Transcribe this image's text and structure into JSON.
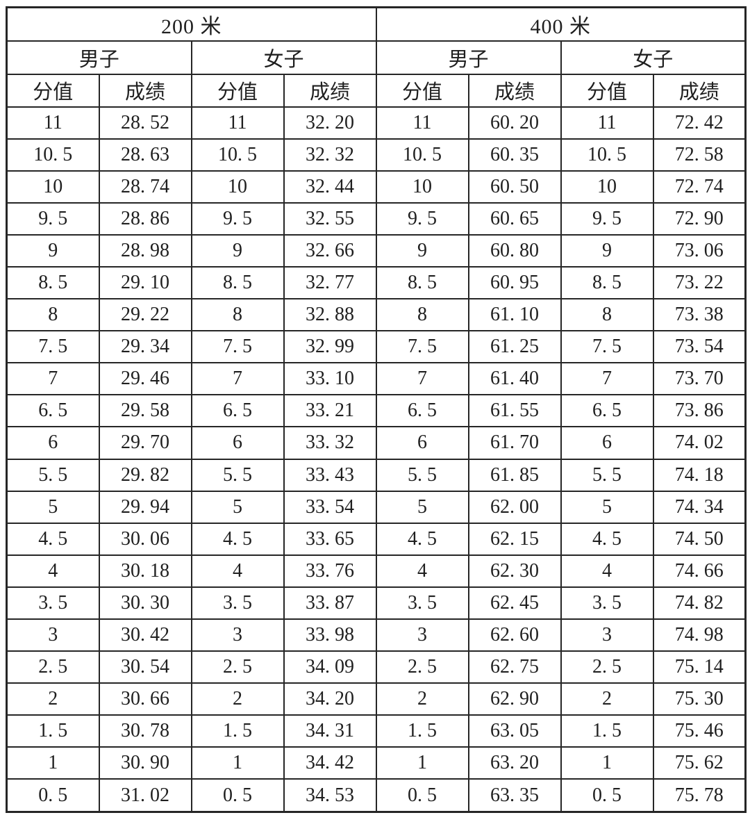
{
  "table": {
    "sections": [
      {
        "title": "200 米"
      },
      {
        "title": "400 米"
      }
    ],
    "gender_headers": [
      "男子",
      "女子",
      "男子",
      "女子"
    ],
    "column_headers": [
      "分值",
      "成绩",
      "分值",
      "成绩",
      "分值",
      "成绩",
      "分值",
      "成绩"
    ],
    "rows": [
      [
        "11",
        "28. 52",
        "11",
        "32. 20",
        "11",
        "60. 20",
        "11",
        "72. 42"
      ],
      [
        "10. 5",
        "28. 63",
        "10. 5",
        "32. 32",
        "10. 5",
        "60. 35",
        "10. 5",
        "72. 58"
      ],
      [
        "10",
        "28. 74",
        "10",
        "32. 44",
        "10",
        "60. 50",
        "10",
        "72. 74"
      ],
      [
        "9. 5",
        "28. 86",
        "9. 5",
        "32. 55",
        "9. 5",
        "60. 65",
        "9. 5",
        "72. 90"
      ],
      [
        "9",
        "28. 98",
        "9",
        "32. 66",
        "9",
        "60. 80",
        "9",
        "73. 06"
      ],
      [
        "8. 5",
        "29. 10",
        "8. 5",
        "32. 77",
        "8. 5",
        "60. 95",
        "8. 5",
        "73. 22"
      ],
      [
        "8",
        "29. 22",
        "8",
        "32. 88",
        "8",
        "61. 10",
        "8",
        "73. 38"
      ],
      [
        "7. 5",
        "29. 34",
        "7. 5",
        "32. 99",
        "7. 5",
        "61. 25",
        "7. 5",
        "73. 54"
      ],
      [
        "7",
        "29. 46",
        "7",
        "33. 10",
        "7",
        "61. 40",
        "7",
        "73. 70"
      ],
      [
        "6. 5",
        "29. 58",
        "6. 5",
        "33. 21",
        "6. 5",
        "61. 55",
        "6. 5",
        "73. 86"
      ],
      [
        "6",
        "29. 70",
        "6",
        "33. 32",
        "6",
        "61. 70",
        "6",
        "74. 02"
      ],
      [
        "5. 5",
        "29. 82",
        "5. 5",
        "33. 43",
        "5. 5",
        "61. 85",
        "5. 5",
        "74. 18"
      ],
      [
        "5",
        "29. 94",
        "5",
        "33. 54",
        "5",
        "62. 00",
        "5",
        "74. 34"
      ],
      [
        "4. 5",
        "30. 06",
        "4. 5",
        "33. 65",
        "4. 5",
        "62. 15",
        "4. 5",
        "74. 50"
      ],
      [
        "4",
        "30. 18",
        "4",
        "33. 76",
        "4",
        "62. 30",
        "4",
        "74. 66"
      ],
      [
        "3. 5",
        "30. 30",
        "3. 5",
        "33. 87",
        "3. 5",
        "62. 45",
        "3. 5",
        "74. 82"
      ],
      [
        "3",
        "30. 42",
        "3",
        "33. 98",
        "3",
        "62. 60",
        "3",
        "74. 98"
      ],
      [
        "2. 5",
        "30. 54",
        "2. 5",
        "34. 09",
        "2. 5",
        "62. 75",
        "2. 5",
        "75. 14"
      ],
      [
        "2",
        "30. 66",
        "2",
        "34. 20",
        "2",
        "62. 90",
        "2",
        "75. 30"
      ],
      [
        "1. 5",
        "30. 78",
        "1. 5",
        "34. 31",
        "1. 5",
        "63. 05",
        "1. 5",
        "75. 46"
      ],
      [
        "1",
        "30. 90",
        "1",
        "34. 42",
        "1",
        "63. 20",
        "1",
        "75. 62"
      ],
      [
        "0. 5",
        "31. 02",
        "0. 5",
        "34. 53",
        "0. 5",
        "63. 35",
        "0. 5",
        "75. 78"
      ]
    ]
  },
  "colors": {
    "background": "#ffffff",
    "border": "#262626",
    "text": "#1f1f1f"
  }
}
